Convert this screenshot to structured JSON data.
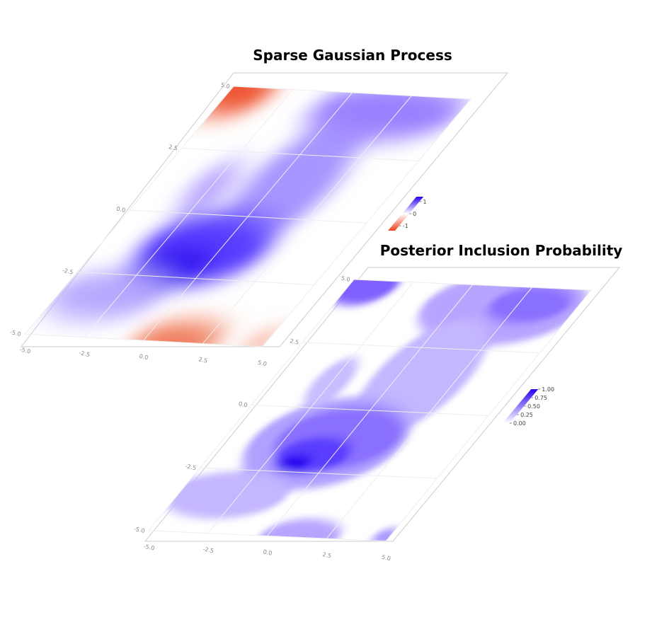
{
  "chart_data": [
    {
      "type": "heatmap",
      "title": "Sparse Gaussian Process",
      "xlim": [
        -5,
        5
      ],
      "ylim": [
        -5,
        5
      ],
      "xticks": [
        {
          "value": -5,
          "label": "-5.0"
        },
        {
          "value": -2.5,
          "label": "-2.5"
        },
        {
          "value": 0,
          "label": "0.0"
        },
        {
          "value": 2.5,
          "label": "2.5"
        },
        {
          "value": 5,
          "label": "5.0"
        }
      ],
      "yticks": [
        {
          "value": -5,
          "label": "-5.0"
        },
        {
          "value": -2.5,
          "label": "-2.5"
        },
        {
          "value": 0,
          "label": "0.0"
        },
        {
          "value": 2.5,
          "label": "2.5"
        },
        {
          "value": 5,
          "label": "5.0"
        }
      ],
      "zlim": [
        -1.4,
        1.4
      ],
      "zticks": [
        -1,
        0,
        1
      ],
      "colorscale": [
        "#ee4422",
        "#ffffff",
        "#2a00f0"
      ]
    },
    {
      "type": "contour",
      "title": "Posterior Inclusion Probability",
      "xlim": [
        -5,
        5
      ],
      "ylim": [
        -5,
        5
      ],
      "xticks": [
        {
          "value": -5,
          "label": "-5.0"
        },
        {
          "value": -2.5,
          "label": "-2.5"
        },
        {
          "value": 0,
          "label": "0.0"
        },
        {
          "value": 2.5,
          "label": "2.5"
        },
        {
          "value": 5,
          "label": "5.0"
        }
      ],
      "yticks": [
        {
          "value": -5,
          "label": "-5.0"
        },
        {
          "value": -2.5,
          "label": "-2.5"
        },
        {
          "value": 0,
          "label": "0.0"
        },
        {
          "value": 2.5,
          "label": "2.5"
        },
        {
          "value": 5,
          "label": "5.0"
        }
      ],
      "zlim": [
        0,
        1
      ],
      "zticks": [
        {
          "value": 0,
          "label": "0.00"
        },
        {
          "value": 0.25,
          "label": "0.25"
        },
        {
          "value": 0.5,
          "label": "0.50"
        },
        {
          "value": 0.75,
          "label": "0.75"
        },
        {
          "value": 1,
          "label": "1.00"
        }
      ],
      "colorscale": [
        "#ffffff",
        "#2a00f0"
      ]
    }
  ]
}
